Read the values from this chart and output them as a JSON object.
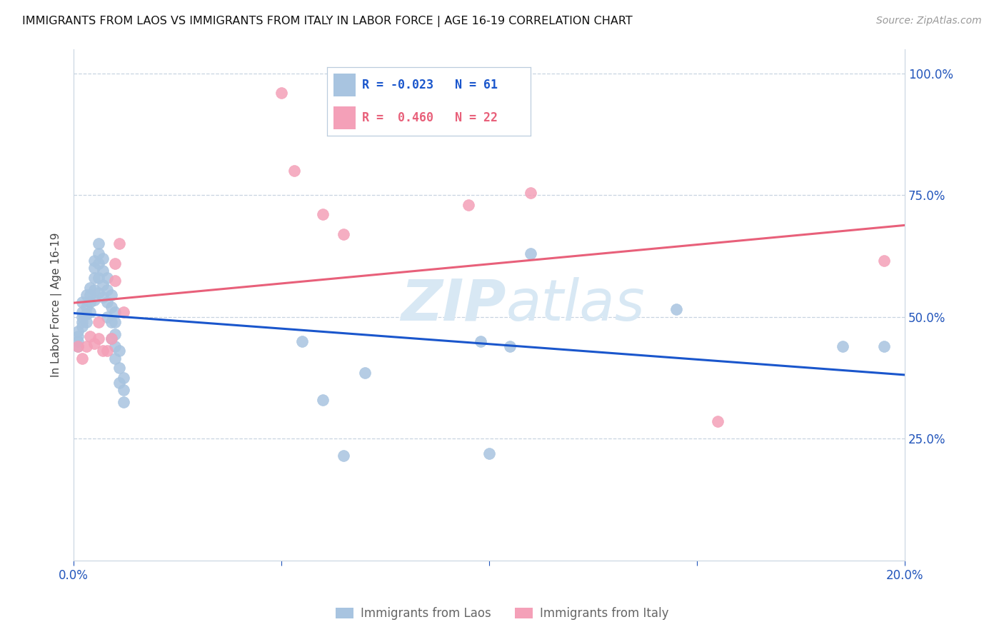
{
  "title": "IMMIGRANTS FROM LAOS VS IMMIGRANTS FROM ITALY IN LABOR FORCE | AGE 16-19 CORRELATION CHART",
  "source": "Source: ZipAtlas.com",
  "ylabel": "In Labor Force | Age 16-19",
  "xlim": [
    0.0,
    0.2
  ],
  "ylim": [
    0.0,
    1.05
  ],
  "laos_R": -0.023,
  "laos_N": 61,
  "italy_R": 0.46,
  "italy_N": 22,
  "laos_color": "#a8c4e0",
  "italy_color": "#f4a0b8",
  "laos_line_color": "#1a56cc",
  "italy_line_color": "#e8607a",
  "watermark_color": "#d8e8f4",
  "laos_x": [
    0.001,
    0.001,
    0.001,
    0.001,
    0.002,
    0.002,
    0.002,
    0.002,
    0.002,
    0.003,
    0.003,
    0.003,
    0.003,
    0.004,
    0.004,
    0.004,
    0.004,
    0.005,
    0.005,
    0.005,
    0.005,
    0.005,
    0.006,
    0.006,
    0.006,
    0.006,
    0.006,
    0.007,
    0.007,
    0.007,
    0.007,
    0.008,
    0.008,
    0.008,
    0.008,
    0.009,
    0.009,
    0.009,
    0.009,
    0.01,
    0.01,
    0.01,
    0.01,
    0.01,
    0.011,
    0.011,
    0.011,
    0.012,
    0.012,
    0.012,
    0.055,
    0.06,
    0.065,
    0.07,
    0.098,
    0.1,
    0.105,
    0.11,
    0.145,
    0.185,
    0.195
  ],
  "laos_y": [
    0.47,
    0.46,
    0.45,
    0.44,
    0.53,
    0.51,
    0.5,
    0.49,
    0.48,
    0.545,
    0.52,
    0.505,
    0.49,
    0.56,
    0.545,
    0.53,
    0.51,
    0.615,
    0.6,
    0.58,
    0.555,
    0.535,
    0.65,
    0.63,
    0.61,
    0.58,
    0.55,
    0.62,
    0.595,
    0.565,
    0.54,
    0.58,
    0.555,
    0.53,
    0.5,
    0.545,
    0.52,
    0.49,
    0.455,
    0.51,
    0.49,
    0.465,
    0.44,
    0.415,
    0.43,
    0.395,
    0.365,
    0.375,
    0.35,
    0.325,
    0.45,
    0.33,
    0.215,
    0.385,
    0.45,
    0.22,
    0.44,
    0.63,
    0.515,
    0.44,
    0.44
  ],
  "italy_x": [
    0.001,
    0.002,
    0.003,
    0.004,
    0.005,
    0.006,
    0.006,
    0.007,
    0.008,
    0.009,
    0.01,
    0.01,
    0.011,
    0.012,
    0.05,
    0.053,
    0.06,
    0.065,
    0.095,
    0.11,
    0.155,
    0.195
  ],
  "italy_y": [
    0.44,
    0.415,
    0.44,
    0.46,
    0.445,
    0.455,
    0.49,
    0.43,
    0.43,
    0.455,
    0.61,
    0.575,
    0.65,
    0.51,
    0.96,
    0.8,
    0.71,
    0.67,
    0.73,
    0.755,
    0.285,
    0.615
  ]
}
